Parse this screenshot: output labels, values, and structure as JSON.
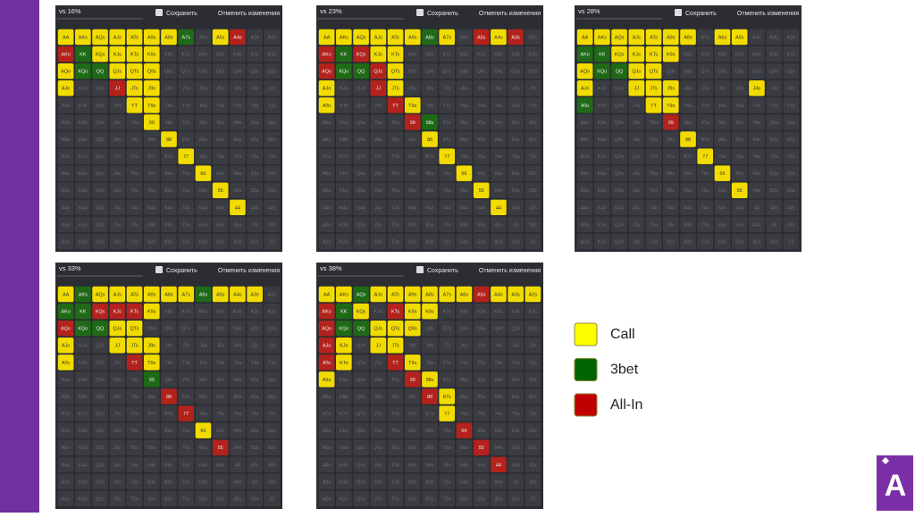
{
  "panels": [
    {
      "title": "vs 16%",
      "save": "Сохранить",
      "revert": "Отменить изменения",
      "cells": [
        "yyyyyyyg.yr..",
        "rgyyyy.......",
        "yggyyy.......",
        "y..ryy.......",
        "....yy.......",
        ".....y.......",
        "......y......",
        ".......y.....",
        "........y....",
        ".........y...",
        "..........y..",
        ".............",
        "............."
      ]
    },
    {
      "title": "vs 23%",
      "save": "Сохранить",
      "revert": "Отменить изменения",
      "cells": [
        "yyyyyygy.ryr.",
        "rgryy........",
        "rggry........",
        "y..ry........",
        "y...ry.......",
        ".....rg......",
        "......y......",
        ".......y.....",
        "........y....",
        ".........y...",
        "..........y..",
        ".............",
        "............."
      ]
    },
    {
      "title": "vs 28%",
      "save": "Сохранить",
      "revert": "Отменить изменения",
      "cells": [
        "yyyyyyy.yy...",
        "ggyyyy.......",
        "yggyy........",
        "y..yyy....y..",
        "g...yy.......",
        ".....r.......",
        "......y......",
        ".......y.....",
        "........y....",
        ".........y...",
        ".............",
        ".............",
        "............."
      ]
    },
    {
      "title": "vs 33%",
      "save": "Сохранить",
      "revert": "Отменить изменения",
      "cells": [
        "ygyyyyyygyyy.",
        "ggrrry.......",
        "rggyy........",
        "y..yyy.......",
        "y...ry.......",
        ".....g.......",
        "......r......",
        ".......r.....",
        "........y....",
        ".........r...",
        ".............",
        ".............",
        "............."
      ]
    },
    {
      "title": "vs 38%",
      "save": "Сохранить",
      "revert": "Отменить изменения",
      "cells": [
        "yygyyyyyyryyy",
        "rgy.ryy......",
        "rggyyy.......",
        "ry.yy........",
        "ry..ry.......",
        "y....ry......",
        "......ry.....",
        ".......y.....",
        "........r....",
        ".........r...",
        "..........r..",
        ".............",
        "............."
      ]
    }
  ],
  "hands": [
    [
      "AA",
      "AKs",
      "AQs",
      "AJs",
      "ATs",
      "A9s",
      "A8s",
      "A7s",
      "A6s",
      "A5s",
      "A4s",
      "A3s",
      "A2s"
    ],
    [
      "AKo",
      "KK",
      "KQs",
      "KJs",
      "KTs",
      "K9s",
      "K8s",
      "K7s",
      "K6s",
      "K5s",
      "K4s",
      "K3s",
      "K2s"
    ],
    [
      "AQo",
      "KQo",
      "QQ",
      "QJs",
      "QTs",
      "Q9s",
      "Q8s",
      "Q7s",
      "Q6s",
      "Q5s",
      "Q4s",
      "Q3s",
      "Q2s"
    ],
    [
      "AJo",
      "KJo",
      "QJo",
      "JJ",
      "JTs",
      "J9s",
      "J8s",
      "J7s",
      "J6s",
      "J5s",
      "J4s",
      "J3s",
      "J2s"
    ],
    [
      "ATo",
      "KTo",
      "QTo",
      "JTo",
      "TT",
      "T9s",
      "T8s",
      "T7s",
      "T6s",
      "T5s",
      "T4s",
      "T3s",
      "T2s"
    ],
    [
      "A9o",
      "K9o",
      "Q9o",
      "J9o",
      "T9o",
      "99",
      "98s",
      "97s",
      "96s",
      "95s",
      "94s",
      "93s",
      "92s"
    ],
    [
      "A8o",
      "K8o",
      "Q8o",
      "J8o",
      "T8o",
      "98o",
      "88",
      "87s",
      "86s",
      "85s",
      "84s",
      "83s",
      "82s"
    ],
    [
      "A7o",
      "K7o",
      "Q7o",
      "J7o",
      "T7o",
      "97o",
      "87o",
      "77",
      "76s",
      "75s",
      "74s",
      "73s",
      "72s"
    ],
    [
      "A6o",
      "K6o",
      "Q6o",
      "J6o",
      "T6o",
      "96o",
      "86o",
      "76o",
      "66",
      "65s",
      "64s",
      "63s",
      "62s"
    ],
    [
      "A5o",
      "K5o",
      "Q5o",
      "J5o",
      "T5o",
      "95o",
      "85o",
      "75o",
      "65o",
      "55",
      "54s",
      "53s",
      "52s"
    ],
    [
      "A4o",
      "K4o",
      "Q4o",
      "J4o",
      "T4o",
      "94o",
      "84o",
      "74o",
      "64o",
      "54o",
      "44",
      "43s",
      "42s"
    ],
    [
      "A3o",
      "K3o",
      "Q3o",
      "J3o",
      "T3o",
      "93o",
      "83o",
      "73o",
      "63o",
      "53o",
      "43o",
      "33",
      "32s"
    ],
    [
      "A2o",
      "K2o",
      "Q2o",
      "J2o",
      "T2o",
      "92o",
      "82o",
      "72o",
      "62o",
      "52o",
      "42o",
      "32o",
      "22"
    ]
  ],
  "legend": [
    {
      "label": "Call",
      "color": "#ffff00",
      "code": "y"
    },
    {
      "label": "3bet",
      "color": "#006400",
      "code": "g"
    },
    {
      "label": "All-In",
      "color": "#c00000",
      "code": "r"
    }
  ],
  "logo": "A"
}
